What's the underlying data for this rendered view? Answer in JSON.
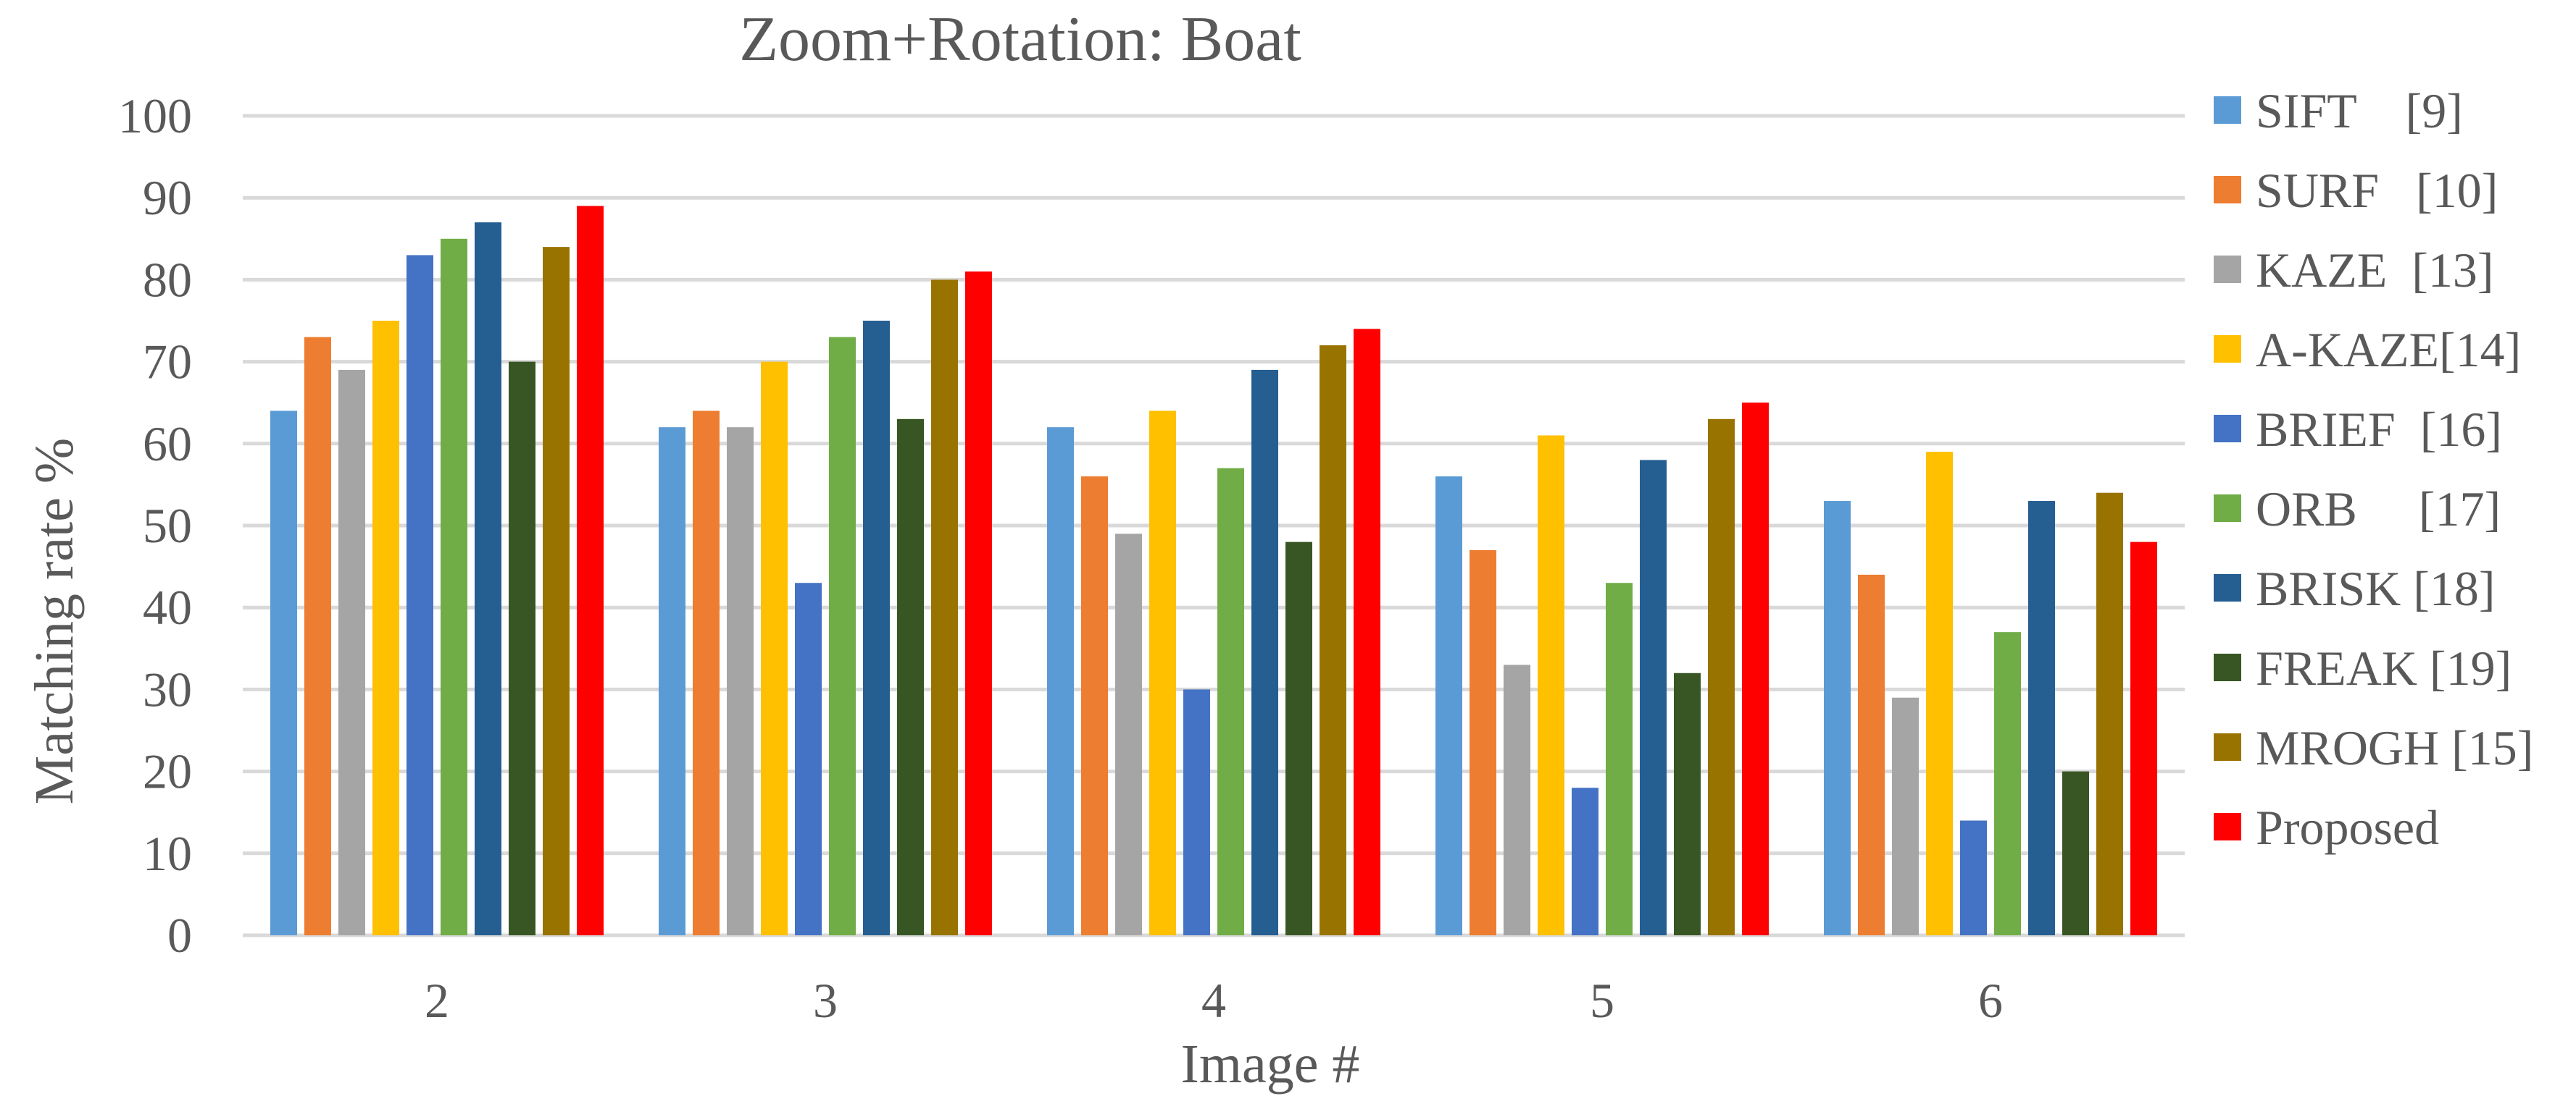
{
  "chart_data": {
    "type": "bar",
    "title": "Zoom+Rotation: Boat",
    "xlabel": "Image #",
    "ylabel": "Matching rate %",
    "categories": [
      "2",
      "3",
      "4",
      "5",
      "6"
    ],
    "ylim": [
      0,
      100
    ],
    "yticks": [
      0,
      10,
      20,
      30,
      40,
      50,
      60,
      70,
      80,
      90,
      100
    ],
    "grid": true,
    "legend_position": "right",
    "series": [
      {
        "name": "SIFT    [9]",
        "color": "#5B9BD5",
        "values": [
          64,
          62,
          62,
          56,
          53
        ]
      },
      {
        "name": "SURF   [10]",
        "color": "#ED7D31",
        "values": [
          73,
          64,
          56,
          47,
          44
        ]
      },
      {
        "name": "KAZE  [13]",
        "color": "#A5A5A5",
        "values": [
          69,
          62,
          49,
          33,
          29
        ]
      },
      {
        "name": "A-KAZE[14]",
        "color": "#FFC000",
        "values": [
          75,
          70,
          64,
          61,
          59
        ]
      },
      {
        "name": "BRIEF  [16]",
        "color": "#4472C4",
        "values": [
          83,
          43,
          30,
          18,
          14
        ]
      },
      {
        "name": "ORB     [17]",
        "color": "#70AD47",
        "values": [
          85,
          73,
          57,
          43,
          37
        ]
      },
      {
        "name": "BRISK [18]",
        "color": "#255E91",
        "values": [
          87,
          75,
          69,
          58,
          53
        ]
      },
      {
        "name": "FREAK [19]",
        "color": "#375623",
        "values": [
          70,
          63,
          48,
          32,
          20
        ]
      },
      {
        "name": "MROGH [15]",
        "color": "#997300",
        "values": [
          84,
          80,
          72,
          63,
          54
        ]
      },
      {
        "name": "Proposed",
        "color": "#FF0000",
        "values": [
          89,
          81,
          74,
          65,
          48
        ]
      }
    ]
  }
}
